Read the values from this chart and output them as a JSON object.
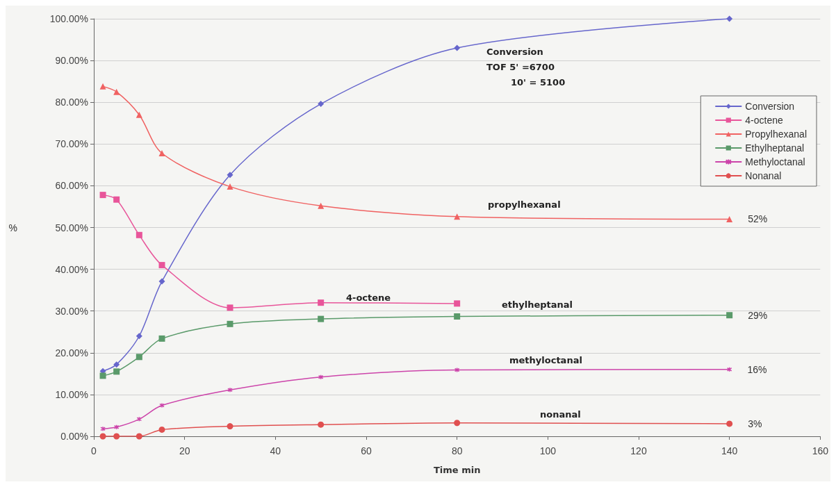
{
  "chart_data": {
    "type": "line",
    "xlabel": "Time min",
    "ylabel": "%",
    "x": [
      2,
      5,
      10,
      15,
      30,
      50,
      80,
      140
    ],
    "series": [
      {
        "name": "Conversion",
        "color": "#6666cc",
        "marker": "diamond",
        "values": [
          15.6,
          17.2,
          24.0,
          37.1,
          62.6,
          79.6,
          93.0,
          100
        ]
      },
      {
        "name": "4-octene",
        "color": "#e8559a",
        "marker": "square",
        "values": [
          57.8,
          56.7,
          48.2,
          41.0,
          30.8,
          32.0,
          31.8,
          null
        ]
      },
      {
        "name": "Propylhexanal",
        "color": "#f06262",
        "marker": "triangle",
        "values": [
          83.8,
          82.5,
          77.0,
          67.8,
          59.8,
          55.2,
          52.6,
          52
        ],
        "value_labels": [
          null,
          null,
          null,
          null,
          null,
          null,
          null,
          "52%"
        ]
      },
      {
        "name": "Ethylheptanal",
        "color": "#5a9a6a",
        "marker": "square",
        "values": [
          14.5,
          15.5,
          19.0,
          23.4,
          26.9,
          28.1,
          28.7,
          29
        ],
        "value_labels": [
          null,
          null,
          null,
          null,
          null,
          null,
          null,
          "29%"
        ]
      },
      {
        "name": "Methyloctanal",
        "color": "#cc44aa",
        "marker": "cross",
        "values": [
          1.8,
          2.2,
          4.1,
          7.4,
          11.1,
          14.2,
          15.9,
          16
        ],
        "value_labels": [
          null,
          null,
          null,
          null,
          null,
          null,
          null,
          "16%"
        ]
      },
      {
        "name": "Nonanal",
        "color": "#e05050",
        "marker": "circle",
        "values": [
          0,
          0,
          0,
          1.6,
          2.4,
          2.8,
          3.2,
          3
        ],
        "value_labels": [
          null,
          null,
          null,
          null,
          null,
          null,
          null,
          "3%"
        ]
      }
    ],
    "annotations": [
      "Conversion",
      "TOF 5' =6700",
      "10' = 5100",
      "propylhexanal",
      "4-octene",
      "ethylheptanal",
      "methyloctanal",
      "nonanal"
    ],
    "xlim": [
      0,
      160
    ],
    "xticks": [
      0,
      20,
      40,
      60,
      80,
      100,
      120,
      140,
      160
    ],
    "ylim": [
      0,
      100
    ],
    "yticks": [
      {
        "value": 0,
        "label": "0.00%"
      },
      {
        "value": 10,
        "label": "10.00%"
      },
      {
        "value": 20,
        "label": "20.00%"
      },
      {
        "value": 30,
        "label": "30.00%"
      },
      {
        "value": 40,
        "label": "40.00%"
      },
      {
        "value": 50,
        "label": "50.00%"
      },
      {
        "value": 60,
        "label": "60.00%"
      },
      {
        "value": 70,
        "label": "70.00%"
      },
      {
        "value": 80,
        "label": "80.00%"
      },
      {
        "value": 90,
        "label": "90.00%"
      },
      {
        "value": 100,
        "label": "100.00%"
      }
    ],
    "grid": "y",
    "legend": "top right",
    "line_style": "solid"
  }
}
